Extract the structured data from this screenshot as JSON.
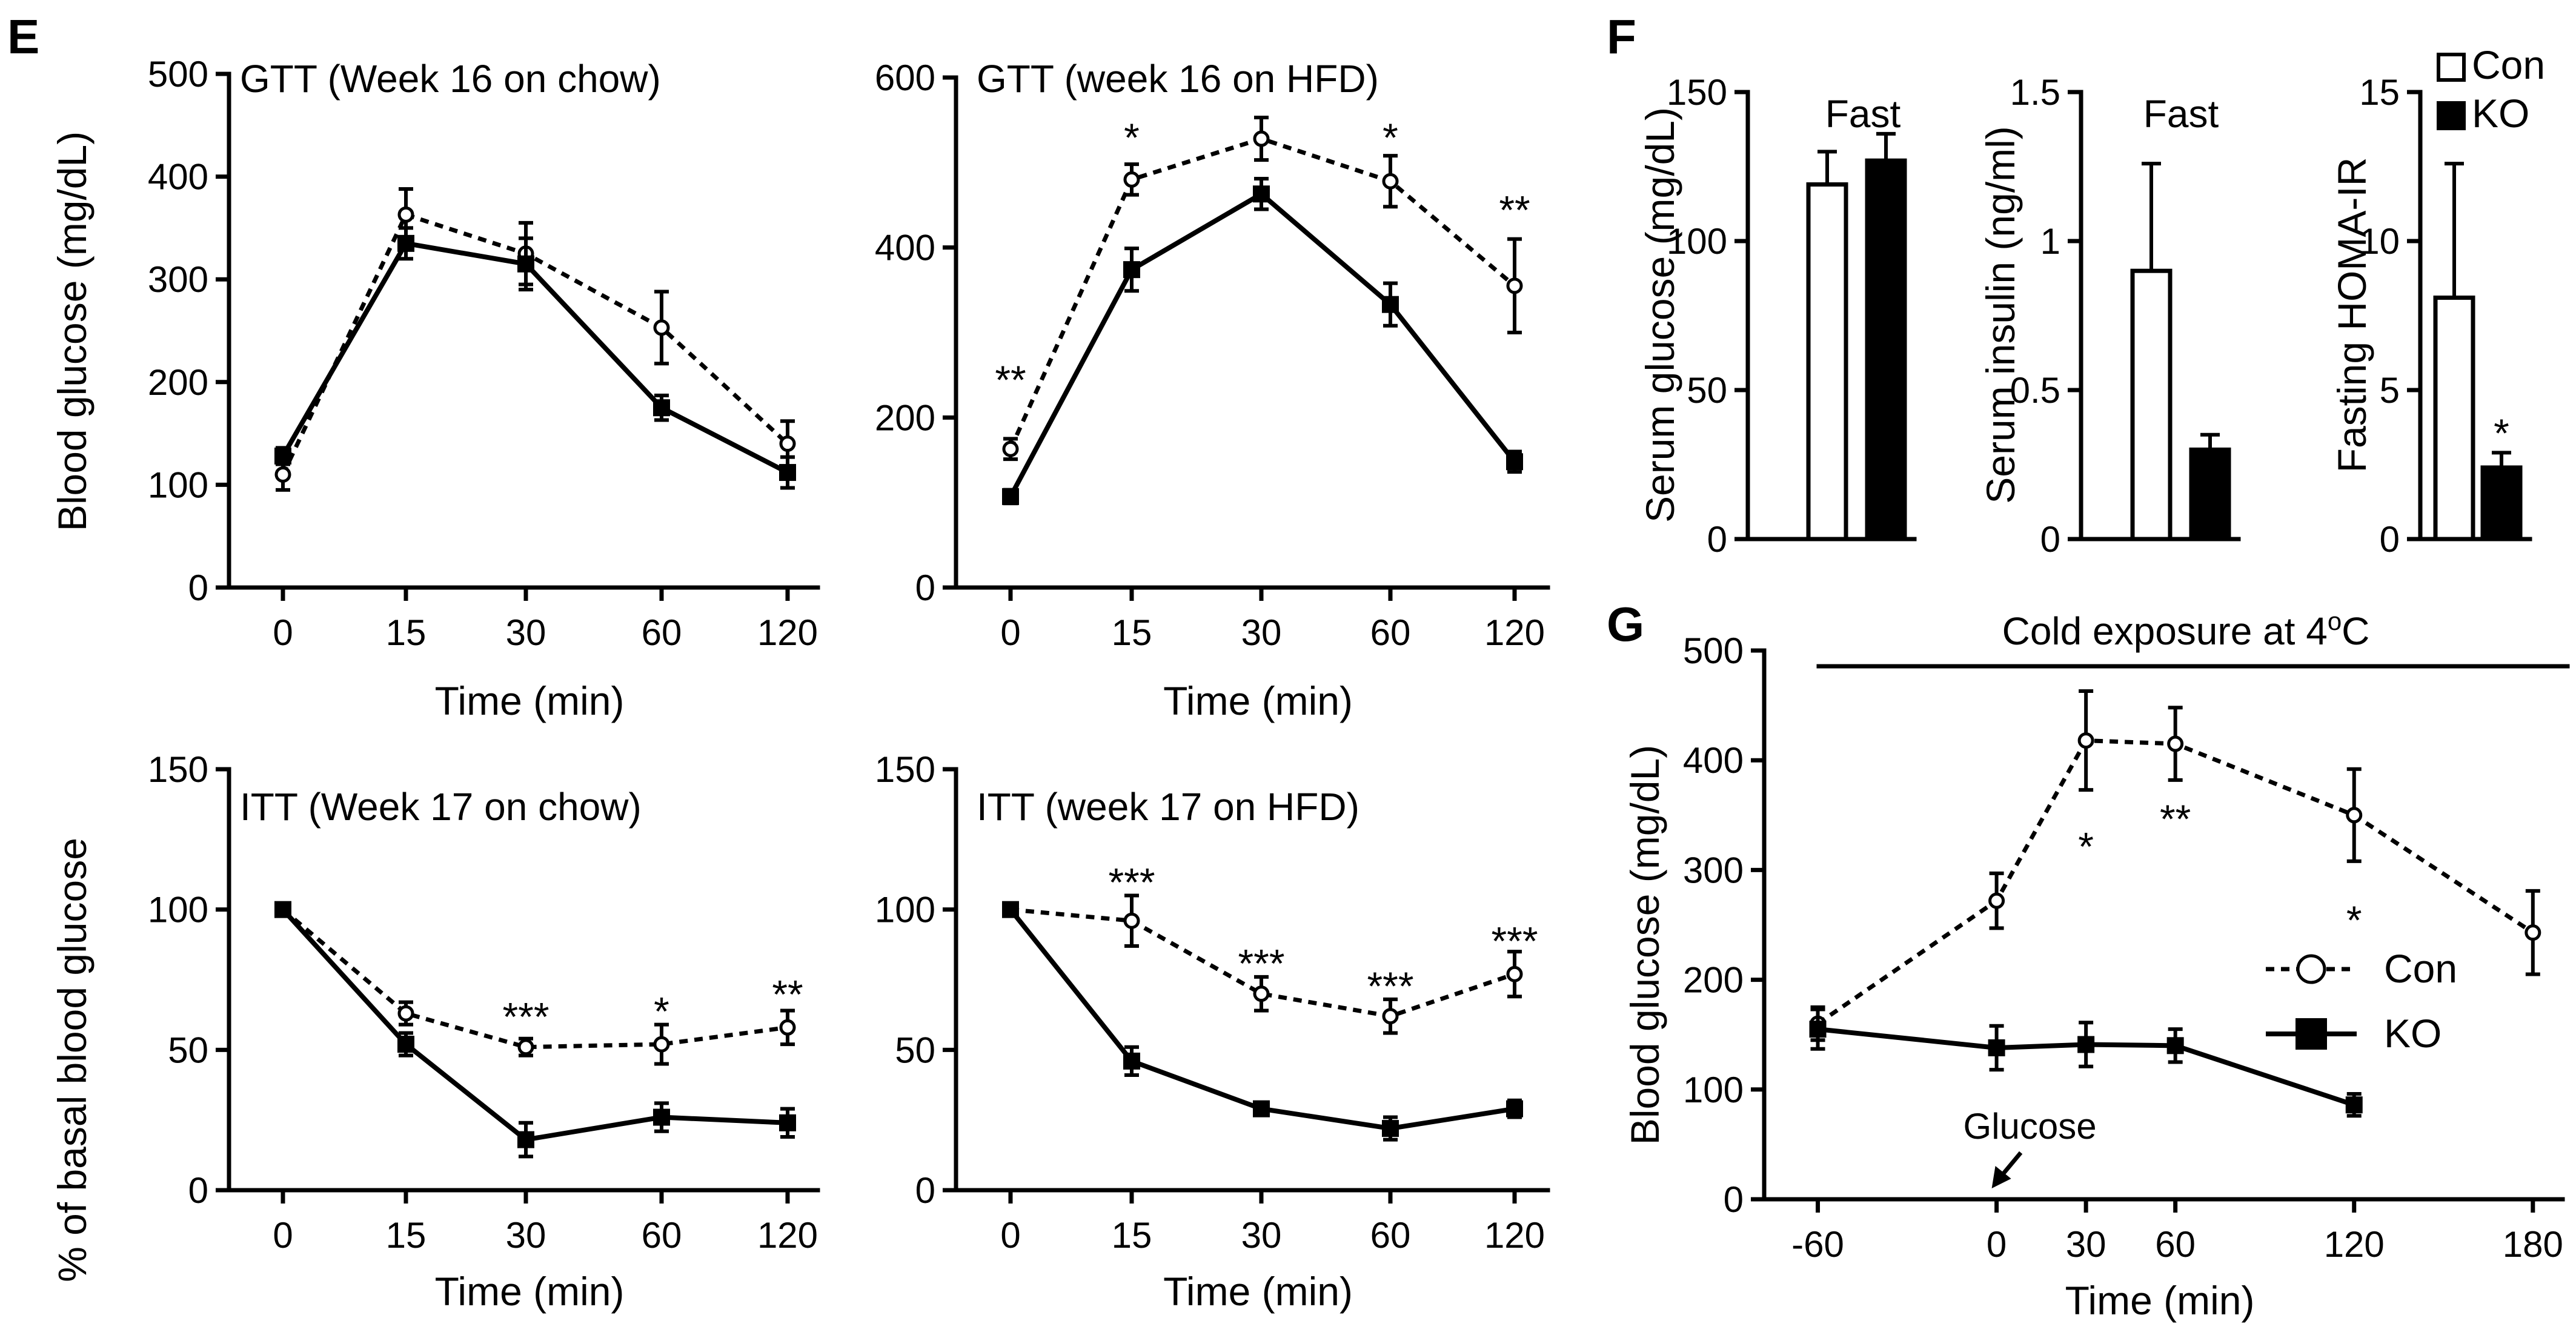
{
  "panel_labels": {
    "E": "E",
    "F": "F",
    "G": "G"
  },
  "chart_data": [
    {
      "id": "gtt_chow",
      "type": "line",
      "panel": "E",
      "title": "GTT (Week 16 on chow)",
      "xlabel": "Time (min)",
      "ylabel": "Blood glucose (mg/dL)",
      "categories": [
        "0",
        "15",
        "30",
        "60",
        "120"
      ],
      "ylim": [
        0,
        500
      ],
      "yticks": [
        0,
        100,
        200,
        300,
        400,
        500
      ],
      "series": [
        {
          "name": "Con",
          "style": "dashed-open-circle",
          "values": [
            110,
            363,
            325,
            253,
            140
          ],
          "errors": [
            15,
            25,
            30,
            35,
            22
          ]
        },
        {
          "name": "KO",
          "style": "solid-filled-square",
          "values": [
            128,
            335,
            315,
            175,
            112
          ],
          "errors": [
            8,
            15,
            25,
            12,
            15
          ]
        }
      ],
      "annotations": []
    },
    {
      "id": "gtt_hfd",
      "type": "line",
      "panel": "E",
      "title": "GTT (week 16 on HFD)",
      "xlabel": "Time (min)",
      "ylabel": "",
      "categories": [
        "0",
        "15",
        "30",
        "60",
        "120"
      ],
      "ylim": [
        0,
        600
      ],
      "yticks": [
        0,
        200,
        400,
        600
      ],
      "series": [
        {
          "name": "Con",
          "style": "dashed-open-circle",
          "values": [
            163,
            480,
            528,
            478,
            355
          ],
          "errors": [
            12,
            18,
            25,
            30,
            55
          ]
        },
        {
          "name": "KO",
          "style": "solid-filled-square",
          "values": [
            107,
            374,
            463,
            333,
            148
          ],
          "errors": [
            8,
            25,
            18,
            25,
            12
          ]
        }
      ],
      "annotations": [
        {
          "category": "0",
          "text": "**",
          "y": 245
        },
        {
          "category": "15",
          "text": "*",
          "y": 530
        },
        {
          "category": "60",
          "text": "*",
          "y": 530
        },
        {
          "category": "120",
          "text": "**",
          "y": 445
        }
      ]
    },
    {
      "id": "itt_chow",
      "type": "line",
      "panel": "E",
      "title": "ITT (Week 17 on chow)",
      "xlabel": "Time (min)",
      "ylabel": "% of basal blood glucose",
      "categories": [
        "0",
        "15",
        "30",
        "60",
        "120"
      ],
      "ylim": [
        0,
        150
      ],
      "yticks": [
        0,
        50,
        100,
        150
      ],
      "series": [
        {
          "name": "Con",
          "style": "dashed-open-circle",
          "values": [
            100,
            63,
            51,
            52,
            58
          ],
          "errors": [
            0,
            4,
            3,
            7,
            6
          ]
        },
        {
          "name": "KO",
          "style": "solid-filled-square",
          "values": [
            100,
            52,
            18,
            26,
            24
          ],
          "errors": [
            0,
            4,
            6,
            5,
            5
          ]
        }
      ],
      "annotations": [
        {
          "category": "30",
          "text": "***",
          "y": 62
        },
        {
          "category": "60",
          "text": "*",
          "y": 64
        },
        {
          "category": "120",
          "text": "**",
          "y": 70
        }
      ]
    },
    {
      "id": "itt_hfd",
      "type": "line",
      "panel": "E",
      "title": "ITT (week 17 on HFD)",
      "xlabel": "Time (min)",
      "ylabel": "",
      "categories": [
        "0",
        "15",
        "30",
        "60",
        "120"
      ],
      "ylim": [
        0,
        150
      ],
      "yticks": [
        0,
        50,
        100,
        150
      ],
      "series": [
        {
          "name": "Con",
          "style": "dashed-open-circle",
          "values": [
            100,
            96,
            70,
            62,
            77
          ],
          "errors": [
            0,
            9,
            6,
            6,
            8
          ]
        },
        {
          "name": "KO",
          "style": "solid-filled-square",
          "values": [
            100,
            46,
            29,
            22,
            29
          ],
          "errors": [
            0,
            5,
            2,
            4,
            3
          ]
        }
      ],
      "annotations": [
        {
          "category": "15",
          "text": "***",
          "y": 110
        },
        {
          "category": "30",
          "text": "***",
          "y": 81
        },
        {
          "category": "60",
          "text": "***",
          "y": 73
        },
        {
          "category": "120",
          "text": "***",
          "y": 89
        }
      ]
    },
    {
      "id": "serum_glucose",
      "type": "bar",
      "panel": "F",
      "title": "Fast",
      "ylabel": "Serum glucose (mg/dL)",
      "ylim": [
        0,
        150
      ],
      "yticks": [
        0,
        50,
        100,
        150
      ],
      "ytick_labels": [
        "0",
        "50",
        "100",
        "150"
      ],
      "series": [
        {
          "name": "Con",
          "value": 119,
          "error": 11
        },
        {
          "name": "KO",
          "value": 127,
          "error": 9
        }
      ],
      "annotations": []
    },
    {
      "id": "serum_insulin",
      "type": "bar",
      "panel": "F",
      "title": "Fast",
      "ylabel": "Serum insulin (ng/ml)",
      "ylim": [
        0,
        1.5
      ],
      "yticks": [
        0,
        0.5,
        1,
        1.5
      ],
      "ytick_labels": [
        "0",
        "0.5",
        "1",
        "1.5"
      ],
      "series": [
        {
          "name": "Con",
          "value": 0.9,
          "error": 0.36
        },
        {
          "name": "KO",
          "value": 0.3,
          "error": 0.05
        }
      ],
      "annotations": []
    },
    {
      "id": "homa_ir",
      "type": "bar",
      "panel": "F",
      "title": "",
      "ylabel": "Fasting HOMA-IR",
      "ylim": [
        0,
        15
      ],
      "yticks": [
        0,
        5,
        10,
        15
      ],
      "ytick_labels": [
        "0",
        "5",
        "10",
        "15"
      ],
      "series": [
        {
          "name": "Con",
          "value": 8.1,
          "error": 4.5
        },
        {
          "name": "KO",
          "value": 2.4,
          "error": 0.5
        }
      ],
      "legend": [
        {
          "name": "Con",
          "fill": "#ffffff"
        },
        {
          "name": "KO",
          "fill": "#000000"
        }
      ],
      "annotations": [
        {
          "series": "KO",
          "text": "*",
          "y": 3.7
        }
      ]
    },
    {
      "id": "cold_exposure",
      "type": "line",
      "panel": "G",
      "title": "Cold exposure at 4°C",
      "title_main": "Cold exposure at 4",
      "title_sup": "o",
      "title_end": "C",
      "xlabel": "Time (min)",
      "ylabel": "Blood glucose (mg/dL)",
      "x_ticks": [
        -60,
        0,
        30,
        60,
        120,
        180
      ],
      "x_tick_labels": [
        "-60",
        "0",
        "30",
        "60",
        "120",
        "180"
      ],
      "xlim": [
        -78,
        190
      ],
      "ylim": [
        0,
        500
      ],
      "yticks": [
        0,
        100,
        200,
        300,
        400,
        500
      ],
      "series": [
        {
          "name": "Con",
          "style": "dashed-open-circle",
          "x": [
            -60,
            0,
            30,
            60,
            120,
            180
          ],
          "values": [
            160,
            272,
            418,
            415,
            350,
            243
          ],
          "errors": [
            15,
            25,
            45,
            33,
            42,
            38
          ]
        },
        {
          "name": "KO",
          "style": "solid-filled-square",
          "x": [
            -60,
            0,
            30,
            60,
            120
          ],
          "values": [
            155,
            138,
            141,
            140,
            86
          ],
          "errors": [
            18,
            20,
            20,
            15,
            10
          ]
        }
      ],
      "annotations": [
        {
          "x": 30,
          "text": "*",
          "y": 322
        },
        {
          "x": 60,
          "text": "**",
          "y": 347
        },
        {
          "x": 120,
          "text": "*",
          "y": 255
        }
      ],
      "arrow_label": "Glucose",
      "arrow_x": 0,
      "legend": [
        {
          "name": "Con"
        },
        {
          "name": "KO"
        }
      ]
    }
  ]
}
